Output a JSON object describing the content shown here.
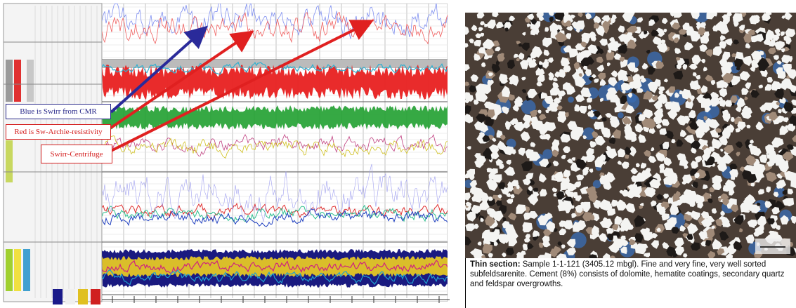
{
  "callouts": [
    "Blue is Swirr from CMR",
    "Red is Sw-Archie-resistivity",
    "Swirr-Centrifuge"
  ],
  "caption": {
    "label": "Thin section:",
    "text": "Sample 1-1-121 (3405.12 mbgl). Fine and very fine, very well sorted subfeldsarenite. Cement (8%) consists of dolomite, hematite coatings, secondary quartz and feldspar overgrowths."
  }
}
